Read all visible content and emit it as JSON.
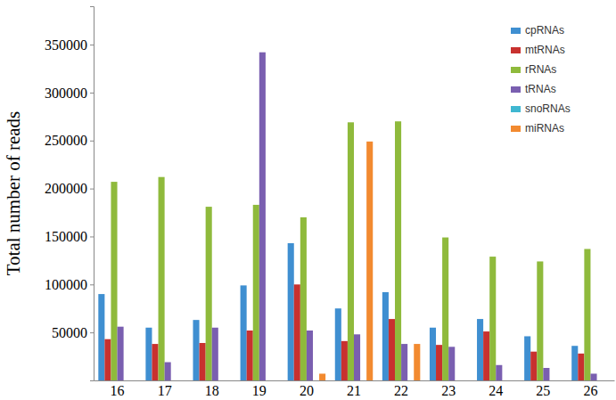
{
  "chart_data": {
    "type": "bar",
    "y_label": "Total number of reads",
    "categories": [
      "16",
      "17",
      "18",
      "19",
      "20",
      "21",
      "22",
      "23",
      "24",
      "25",
      "26"
    ],
    "series": [
      {
        "name": "cpRNAs",
        "color": "#3f8fd1",
        "values": [
          90000,
          55000,
          63000,
          99000,
          143000,
          75000,
          92000,
          55000,
          64000,
          46000,
          36000
        ]
      },
      {
        "name": "mtRNAs",
        "color": "#c8312f",
        "values": [
          43000,
          38000,
          39000,
          52000,
          100000,
          41000,
          64000,
          37000,
          51000,
          30000,
          28000
        ]
      },
      {
        "name": "rRNAs",
        "color": "#8fba3c",
        "values": [
          207000,
          212000,
          181000,
          183000,
          170000,
          269000,
          270000,
          149000,
          129000,
          124000,
          137000
        ]
      },
      {
        "name": "tRNAs",
        "color": "#7a5fb0",
        "values": [
          56000,
          19000,
          55000,
          342000,
          52000,
          48000,
          38000,
          35000,
          16000,
          13000,
          7000
        ]
      },
      {
        "name": "snoRNAs",
        "color": "#3fb7d1",
        "values": [
          0,
          0,
          0,
          0,
          0,
          0,
          0,
          0,
          0,
          0,
          0
        ]
      },
      {
        "name": "miRNAs",
        "color": "#f28a30",
        "values": [
          0,
          0,
          0,
          0,
          7000,
          249000,
          38000,
          0,
          0,
          0,
          0
        ]
      }
    ],
    "ylim": [
      0,
      390000
    ],
    "yticks": [
      50000,
      100000,
      150000,
      200000,
      250000,
      300000,
      350000
    ],
    "grid": false,
    "legend": "upper right"
  }
}
